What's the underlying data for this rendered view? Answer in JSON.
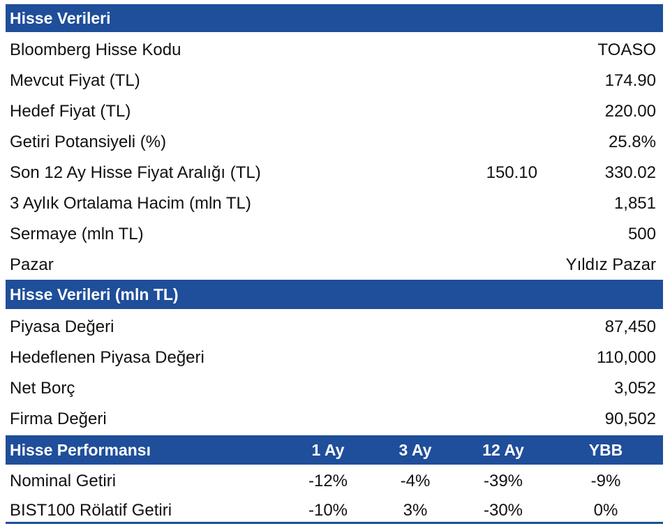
{
  "section1": {
    "title": "Hisse Verileri",
    "rows": [
      {
        "label": "Bloomberg Hisse Kodu",
        "value": "TOASO"
      },
      {
        "label": "Mevcut Fiyat (TL)",
        "value": "174.90"
      },
      {
        "label": "Hedef Fiyat (TL)",
        "value": "220.00"
      },
      {
        "label": "Getiri Potansiyeli (%)",
        "value": "25.8%"
      },
      {
        "label": "Son 12 Ay Hisse Fiyat Aralığı (TL)",
        "low": "150.10",
        "value": "330.02"
      },
      {
        "label": "3 Aylık Ortalama Hacim (mln TL)",
        "value": "1,851"
      },
      {
        "label": "Sermaye (mln TL)",
        "value": "500"
      },
      {
        "label": "Pazar",
        "value": "Yıldız Pazar"
      }
    ]
  },
  "section2": {
    "title": "Hisse Verileri (mln TL)",
    "rows": [
      {
        "label": "Piyasa Değeri",
        "value": "87,450"
      },
      {
        "label": "Hedeflenen Piyasa Değeri",
        "value": "110,000"
      },
      {
        "label": "Net Borç",
        "value": "3,052"
      },
      {
        "label": "Firma Değeri",
        "value": "90,502"
      }
    ]
  },
  "section3": {
    "title": "Hisse Performansı",
    "columns": [
      "1 Ay",
      "3 Ay",
      "12 Ay",
      "YBB"
    ],
    "rows": [
      {
        "label": "Nominal Getiri",
        "values": [
          "-12%",
          "-4%",
          "-39%",
          "-9%"
        ]
      },
      {
        "label": "BIST100 Rölatif Getiri",
        "values": [
          "-10%",
          "3%",
          "-30%",
          "0%"
        ]
      }
    ]
  },
  "colors": {
    "header_bg": "#1f4e9a",
    "header_text": "#ffffff"
  }
}
